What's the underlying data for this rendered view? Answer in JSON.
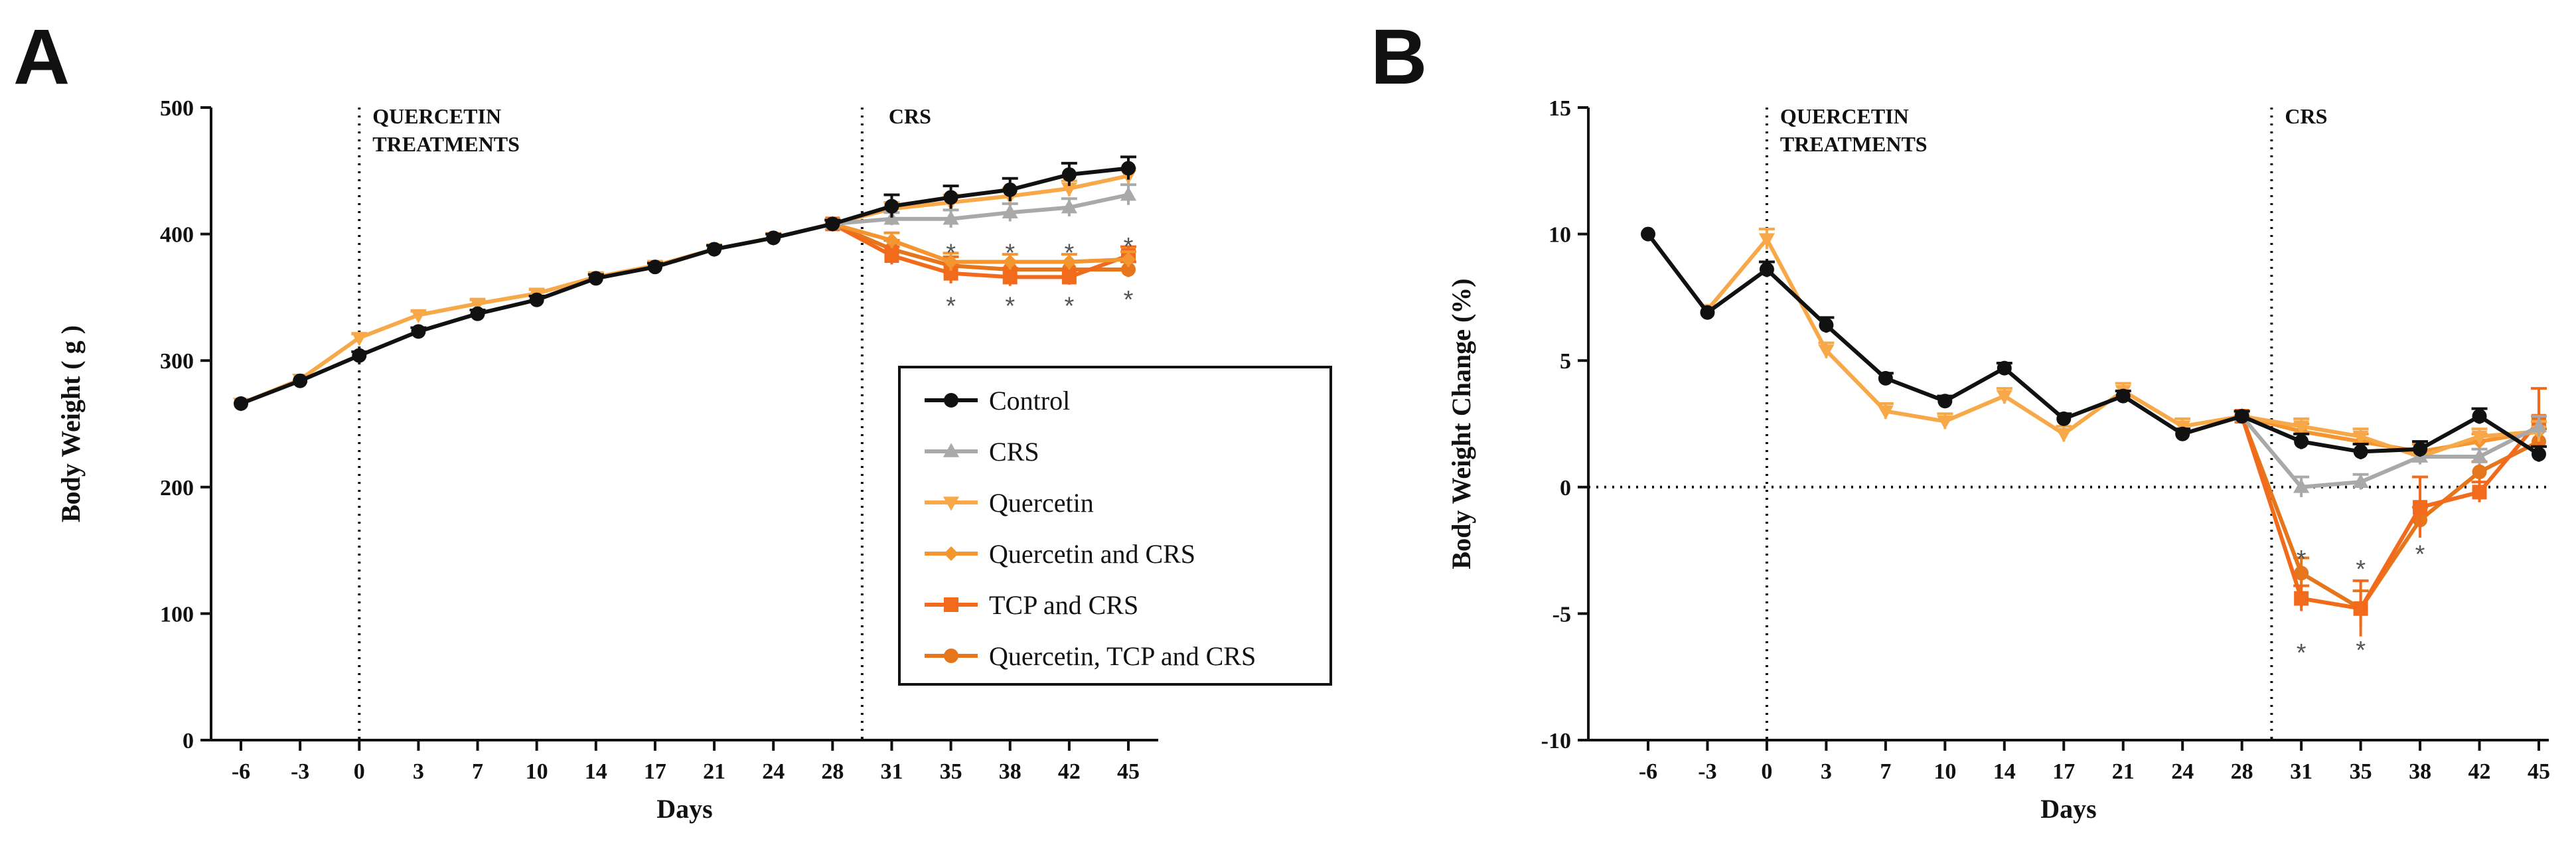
{
  "colors": {
    "control": "#111111",
    "crs": "#a9a9a9",
    "quercetin": "#f7a94a",
    "quercetin_crs": "#f59530",
    "tcp_crs": "#f26b1d",
    "quercetin_tcp_crs": "#e6761c",
    "star": "#555555"
  },
  "chart_data": [
    {
      "panel": "A",
      "type": "line",
      "title": "",
      "xlabel": "Days",
      "ylabel": "Body Weight ( g )",
      "categories": [
        "-6",
        "-3",
        "0",
        "3",
        "7",
        "10",
        "14",
        "17",
        "21",
        "24",
        "28",
        "31",
        "35",
        "38",
        "42",
        "45"
      ],
      "ylim": [
        0,
        500
      ],
      "yticks": [
        "0",
        "100",
        "200",
        "300",
        "400",
        "500"
      ],
      "vlines": [
        {
          "after_index": 2.0,
          "label": [
            "QUERCETIN",
            "TREATMENTS"
          ]
        },
        {
          "after_index": 10.5,
          "label": [
            "CRS"
          ]
        }
      ],
      "series": [
        {
          "name": "Quercetin, TCP and CRS",
          "key": "quercetin_tcp_crs",
          "marker": "circle",
          "values": [
            null,
            null,
            null,
            null,
            null,
            null,
            null,
            null,
            null,
            null,
            408,
            388,
            375,
            372,
            372,
            372
          ],
          "errors": [
            0,
            0,
            0,
            0,
            0,
            0,
            0,
            0,
            0,
            0,
            3,
            7,
            7,
            6,
            6,
            6
          ]
        },
        {
          "name": "TCP and CRS",
          "key": "tcp_crs",
          "marker": "square",
          "values": [
            null,
            null,
            null,
            null,
            null,
            null,
            null,
            null,
            null,
            null,
            408,
            383,
            369,
            366,
            366,
            383
          ],
          "errors": [
            0,
            0,
            0,
            0,
            0,
            0,
            0,
            0,
            0,
            0,
            3,
            7,
            8,
            7,
            6,
            7
          ]
        },
        {
          "name": "Quercetin and CRS",
          "key": "quercetin_crs",
          "marker": "diamond",
          "values": [
            null,
            null,
            null,
            null,
            null,
            null,
            null,
            null,
            null,
            null,
            408,
            395,
            378,
            378,
            378,
            380
          ],
          "errors": [
            0,
            0,
            0,
            0,
            0,
            0,
            0,
            0,
            0,
            0,
            3,
            6,
            7,
            6,
            6,
            6
          ]
        },
        {
          "name": "Quercetin",
          "key": "quercetin",
          "marker": "triangle-down",
          "values": [
            266,
            285,
            318,
            336,
            345,
            353,
            366,
            375,
            388,
            397,
            408,
            420,
            425,
            430,
            436,
            446
          ],
          "errors": [
            0,
            0,
            3,
            3,
            3,
            3,
            3,
            3,
            3,
            3,
            3,
            5,
            6,
            6,
            6,
            6
          ]
        },
        {
          "name": "CRS",
          "key": "crs",
          "marker": "triangle-up",
          "values": [
            null,
            null,
            null,
            null,
            null,
            null,
            null,
            null,
            null,
            null,
            408,
            412,
            412,
            417,
            421,
            431
          ],
          "errors": [
            0,
            0,
            0,
            0,
            0,
            0,
            0,
            0,
            0,
            0,
            3,
            5,
            7,
            7,
            7,
            8
          ]
        },
        {
          "name": "Control",
          "key": "control",
          "marker": "circle",
          "values": [
            266,
            284,
            304,
            323,
            337,
            348,
            365,
            374,
            388,
            397,
            408,
            422,
            429,
            435,
            447,
            452
          ],
          "errors": [
            0,
            0,
            3,
            3,
            3,
            3,
            3,
            3,
            3,
            3,
            3,
            9,
            9,
            9,
            9,
            9
          ]
        }
      ],
      "annotations": [
        {
          "text": "*",
          "index": 12,
          "value": 390
        },
        {
          "text": "*",
          "index": 13,
          "value": 390
        },
        {
          "text": "*",
          "index": 14,
          "value": 390
        },
        {
          "text": "*",
          "index": 15,
          "value": 395
        },
        {
          "text": "*",
          "index": 12,
          "value": 348
        },
        {
          "text": "*",
          "index": 13,
          "value": 348
        },
        {
          "text": "*",
          "index": 14,
          "value": 348
        },
        {
          "text": "*",
          "index": 15,
          "value": 353
        }
      ],
      "legend": {
        "placement": "lower-right",
        "entries": [
          {
            "name": "Control",
            "key": "control",
            "marker": "circle"
          },
          {
            "name": "CRS",
            "key": "crs",
            "marker": "triangle-up"
          },
          {
            "name": "Quercetin",
            "key": "quercetin",
            "marker": "triangle-down"
          },
          {
            "name": "Quercetin and CRS",
            "key": "quercetin_crs",
            "marker": "diamond"
          },
          {
            "name": "TCP and CRS",
            "key": "tcp_crs",
            "marker": "square"
          },
          {
            "name": "Quercetin, TCP and CRS",
            "key": "quercetin_tcp_crs",
            "marker": "circle"
          }
        ]
      }
    },
    {
      "panel": "B",
      "type": "line",
      "title": "",
      "xlabel": "Days",
      "ylabel": "Body Weight Change (%)",
      "categories": [
        "-6",
        "-3",
        "0",
        "3",
        "7",
        "10",
        "14",
        "17",
        "21",
        "24",
        "28",
        "31",
        "35",
        "38",
        "42",
        "45"
      ],
      "ylim": [
        -10,
        15
      ],
      "yticks": [
        "-10",
        "-5",
        "0",
        "5",
        "10",
        "15"
      ],
      "hline": {
        "value": 0,
        "style": "dotted"
      },
      "vlines": [
        {
          "after_index": 2.0,
          "label": [
            "QUERCETIN",
            "TREATMENTS"
          ]
        },
        {
          "after_index": 10.5,
          "label": [
            "CRS"
          ]
        }
      ],
      "series": [
        {
          "name": "Quercetin, TCP and CRS",
          "key": "quercetin_tcp_crs",
          "marker": "circle",
          "values": [
            null,
            null,
            null,
            null,
            null,
            null,
            null,
            null,
            null,
            null,
            2.8,
            -3.4,
            -4.8,
            -1.3,
            0.6,
            1.8
          ],
          "errors": [
            0,
            0,
            0,
            0,
            0,
            0,
            0,
            0,
            0,
            0,
            0.2,
            0.6,
            0.7,
            0.5,
            0.4,
            0.5
          ]
        },
        {
          "name": "TCP and CRS",
          "key": "tcp_crs",
          "marker": "square",
          "values": [
            null,
            null,
            null,
            null,
            null,
            null,
            null,
            null,
            null,
            null,
            2.8,
            -4.4,
            -4.8,
            -0.8,
            -0.2,
            2.6
          ],
          "errors": [
            0,
            0,
            0,
            0,
            0,
            0,
            0,
            0,
            0,
            0,
            0.2,
            0.5,
            1.1,
            1.2,
            0.4,
            1.3
          ]
        },
        {
          "name": "Quercetin and CRS",
          "key": "quercetin_crs",
          "marker": "diamond",
          "values": [
            null,
            null,
            null,
            null,
            null,
            null,
            null,
            null,
            null,
            null,
            2.8,
            2.2,
            1.8,
            1.4,
            1.8,
            2.2
          ],
          "errors": [
            0,
            0,
            0,
            0,
            0,
            0,
            0,
            0,
            0,
            0,
            0.2,
            0.3,
            0.3,
            0.3,
            0.3,
            0.4
          ]
        },
        {
          "name": "Quercetin",
          "key": "quercetin",
          "marker": "triangle-down",
          "values": [
            null,
            7.0,
            9.8,
            5.4,
            3.0,
            2.6,
            3.6,
            2.1,
            3.8,
            2.4,
            2.8,
            2.4,
            2.0,
            1.2,
            2.0,
            2.2
          ],
          "errors": [
            0,
            0,
            0.4,
            0.3,
            0.3,
            0.3,
            0.3,
            0.3,
            0.3,
            0.3,
            0.2,
            0.3,
            0.3,
            0.3,
            0.3,
            0.4
          ]
        },
        {
          "name": "CRS",
          "key": "crs",
          "marker": "triangle-up",
          "values": [
            null,
            null,
            null,
            null,
            null,
            null,
            null,
            null,
            null,
            null,
            2.8,
            0.0,
            0.2,
            1.2,
            1.2,
            2.4
          ],
          "errors": [
            0,
            0,
            0,
            0,
            0,
            0,
            0,
            0,
            0,
            0,
            0.2,
            0.4,
            0.3,
            0.3,
            0.3,
            0.4
          ]
        },
        {
          "name": "Control",
          "key": "control",
          "marker": "circle",
          "values": [
            10.0,
            6.9,
            8.6,
            6.4,
            4.3,
            3.4,
            4.7,
            2.7,
            3.6,
            2.1,
            2.8,
            1.8,
            1.4,
            1.5,
            2.8,
            1.3
          ],
          "errors": [
            0,
            0,
            0.3,
            0.3,
            0.2,
            0.2,
            0.2,
            0.2,
            0.2,
            0.2,
            0.2,
            0.3,
            0.3,
            0.3,
            0.3,
            0.3
          ]
        }
      ],
      "annotations": [
        {
          "text": "*",
          "index": 11,
          "value": -2.6
        },
        {
          "text": "*",
          "index": 12,
          "value": -3.0
        },
        {
          "text": "*",
          "index": 13,
          "value": -2.4
        },
        {
          "text": "*",
          "index": 11,
          "value": -6.3
        },
        {
          "text": "*",
          "index": 12,
          "value": -6.2
        }
      ]
    }
  ]
}
